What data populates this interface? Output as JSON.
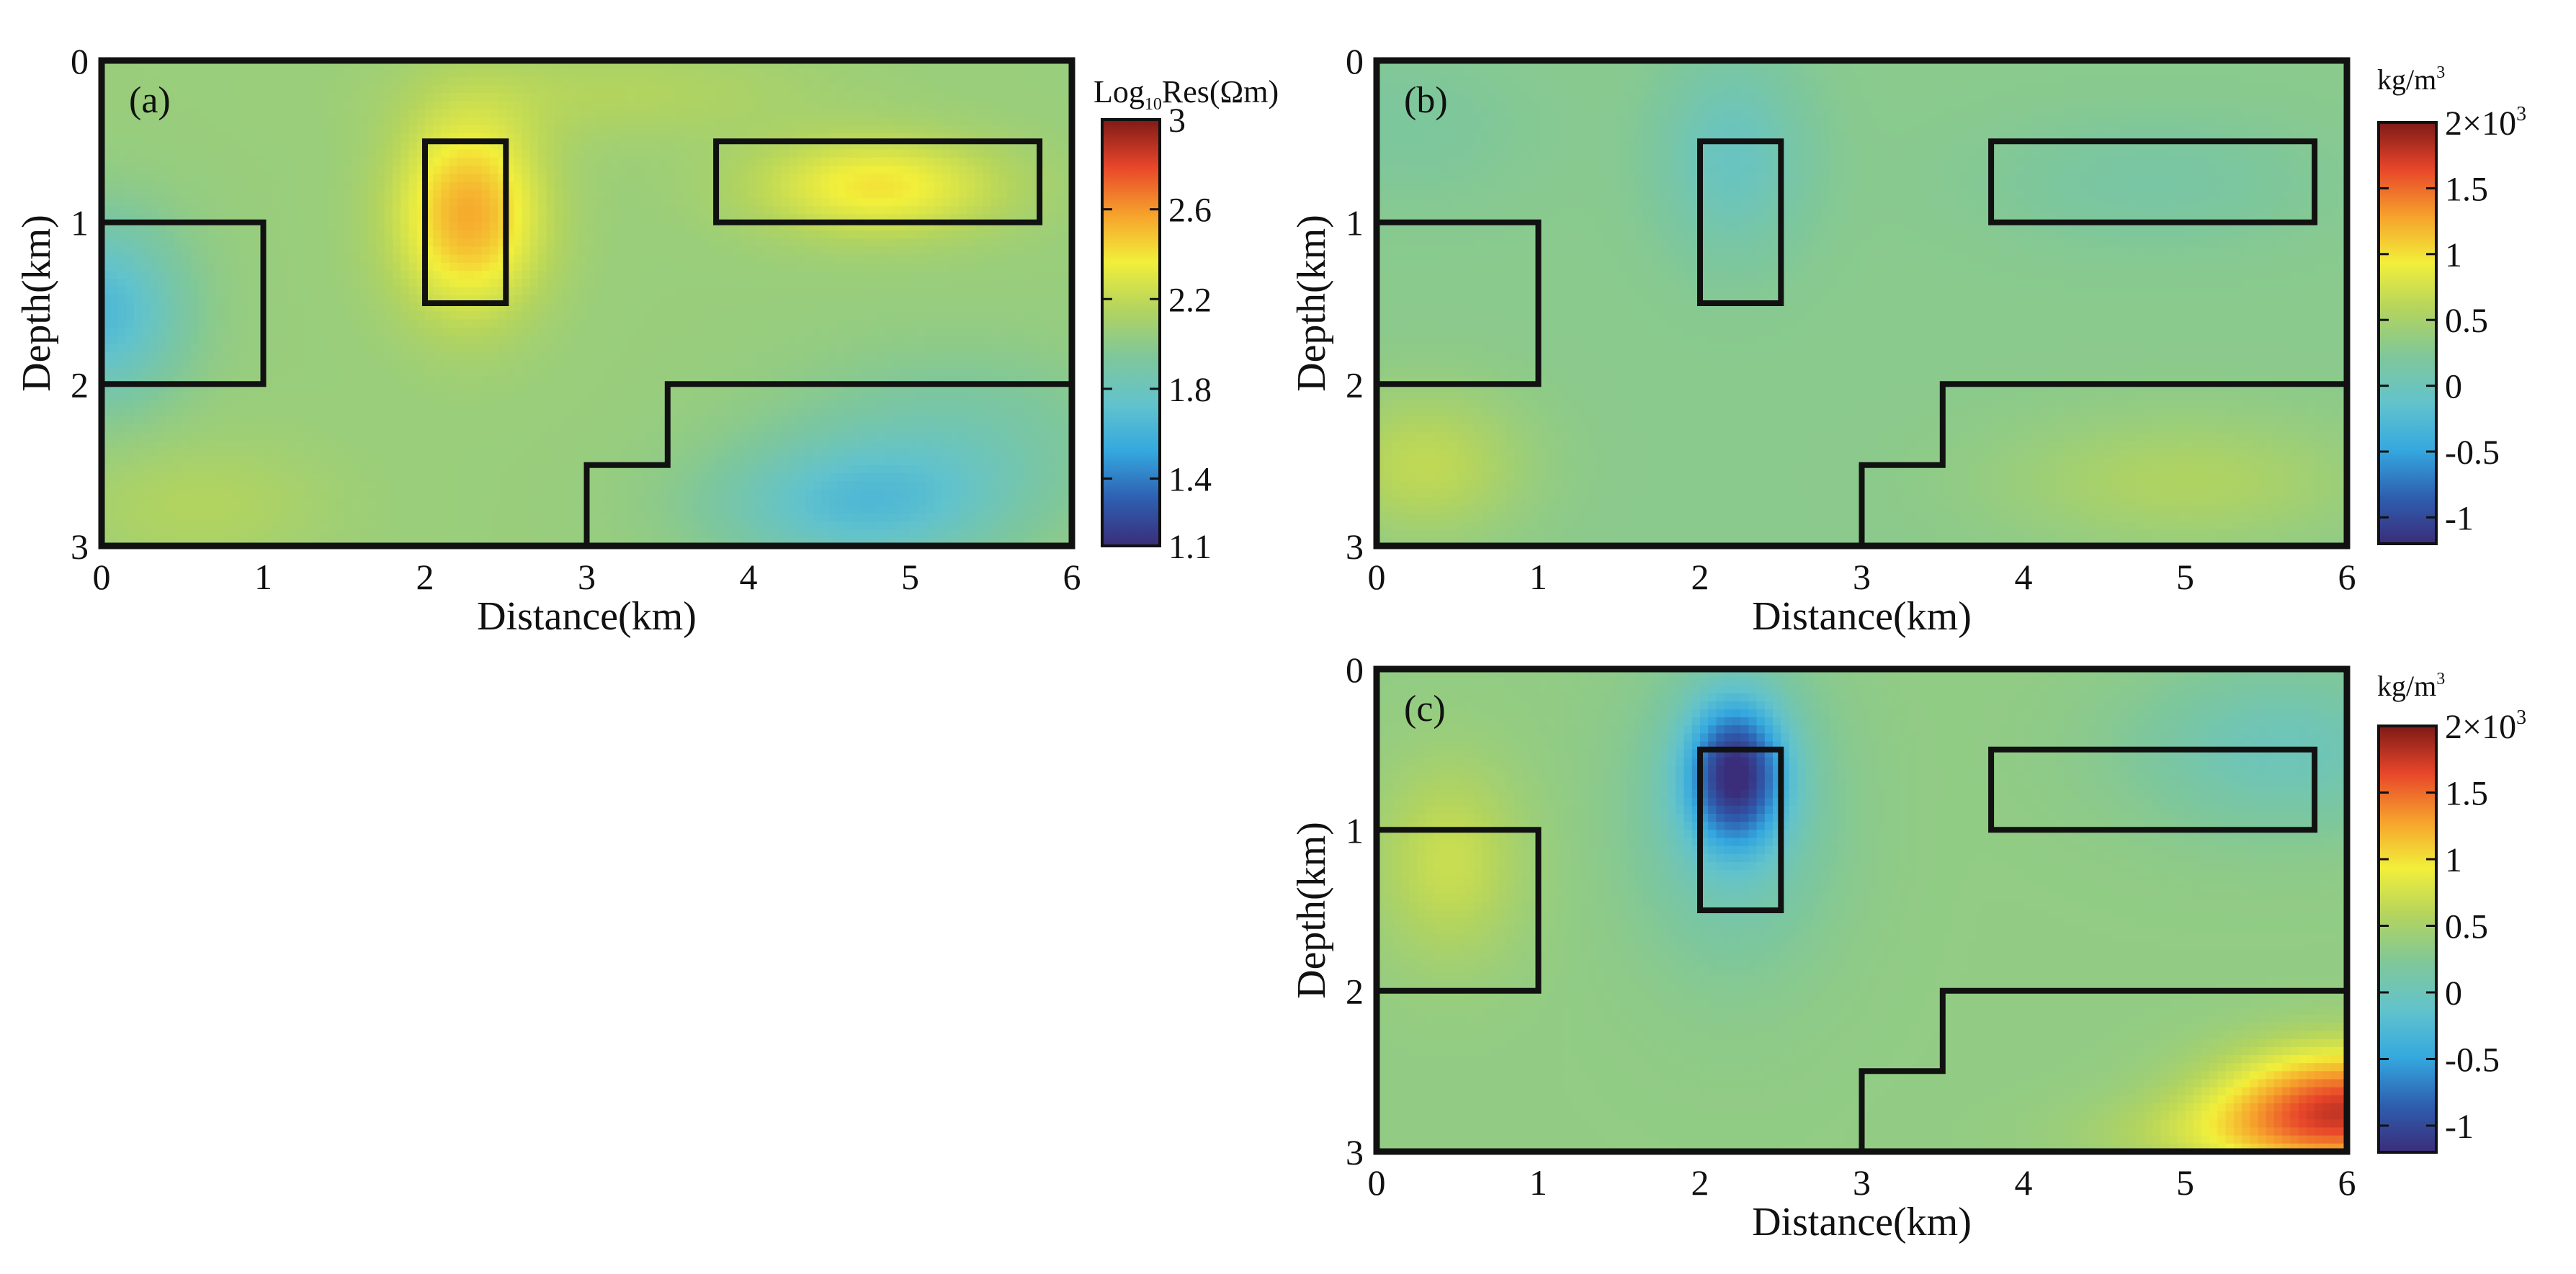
{
  "colors": {
    "outline": "#111111",
    "colormap": [
      "#3a2d7a",
      "#2e5fb0",
      "#34a8df",
      "#62c3cc",
      "#7fc79a",
      "#b3d45e",
      "#f2ef3a",
      "#f6a12c",
      "#e8462a",
      "#7e1a17"
    ]
  },
  "chart_data": [
    {
      "type": "heatmap",
      "panel_label": "(a)",
      "xlabel": "Distance(km)",
      "ylabel": "Depth(km)",
      "xlim": [
        0,
        6
      ],
      "ylim": [
        3,
        0
      ],
      "x_ticks": [
        "0",
        "1",
        "2",
        "3",
        "4",
        "5",
        "6"
      ],
      "y_ticks": [
        "0",
        "1",
        "2",
        "3"
      ],
      "colorbar": {
        "label_main": "Log",
        "label_sub": "10",
        "label_rest": "Res(Ωm)",
        "range": [
          1.1,
          3.0
        ],
        "ticks": [
          {
            "value": 3.0,
            "label": "3"
          },
          {
            "value": 2.6,
            "label": "2.6"
          },
          {
            "value": 2.2,
            "label": "2.2"
          },
          {
            "value": 1.8,
            "label": "1.8"
          },
          {
            "value": 1.4,
            "label": "1.4"
          },
          {
            "value": 1.1,
            "label": "1.1"
          }
        ]
      },
      "field": {
        "base": 2.05,
        "anomalies": [
          {
            "x": 2.27,
            "z": 0.95,
            "amp": 0.5,
            "sx": 0.45,
            "sz": 0.6
          },
          {
            "x": 4.8,
            "z": 0.78,
            "amp": 0.35,
            "sx": 0.75,
            "sz": 0.3
          },
          {
            "x": 0.0,
            "z": 1.55,
            "amp": -0.4,
            "sx": 0.5,
            "sz": 0.55
          },
          {
            "x": 4.7,
            "z": 2.75,
            "amp": -0.35,
            "sx": 0.9,
            "sz": 0.4
          },
          {
            "x": 5.3,
            "z": 2.3,
            "amp": -0.15,
            "sx": 1.0,
            "sz": 0.5
          },
          {
            "x": 0.6,
            "z": 2.75,
            "amp": 0.1,
            "sx": 0.8,
            "sz": 0.4
          },
          {
            "x": 3.2,
            "z": 0.2,
            "amp": 0.1,
            "sx": 1.2,
            "sz": 0.3
          }
        ]
      }
    },
    {
      "type": "heatmap",
      "panel_label": "(b)",
      "xlabel": "Distance(km)",
      "ylabel": "Depth(km)",
      "xlim": [
        0,
        6
      ],
      "ylim": [
        3,
        0
      ],
      "x_ticks": [
        "0",
        "1",
        "2",
        "3",
        "4",
        "5",
        "6"
      ],
      "y_ticks": [
        "0",
        "1",
        "2",
        "3"
      ],
      "colorbar": {
        "label_main": "kg/m",
        "label_sup": "3",
        "range": [
          -1.2,
          2.0
        ],
        "ticks": [
          {
            "value": 2.0,
            "label": "2×10",
            "sup": "3"
          },
          {
            "value": 1.5,
            "label": "1.5"
          },
          {
            "value": 1.0,
            "label": "1"
          },
          {
            "value": 0.5,
            "label": "0.5"
          },
          {
            "value": 0.0,
            "label": "0"
          },
          {
            "value": -0.5,
            "label": "-0.5"
          },
          {
            "value": -1.0,
            "label": "-1"
          }
        ]
      },
      "field": {
        "base": 0.3,
        "anomalies": [
          {
            "x": 2.2,
            "z": 0.6,
            "amp": -0.35,
            "sx": 0.45,
            "sz": 0.6
          },
          {
            "x": 4.8,
            "z": 0.75,
            "amp": -0.15,
            "sx": 1.0,
            "sz": 0.4
          },
          {
            "x": 0.3,
            "z": 2.5,
            "amp": 0.35,
            "sx": 0.6,
            "sz": 0.45
          },
          {
            "x": 5.0,
            "z": 2.6,
            "amp": 0.25,
            "sx": 1.1,
            "sz": 0.4
          },
          {
            "x": 0.2,
            "z": 0.4,
            "amp": -0.1,
            "sx": 0.8,
            "sz": 0.5
          }
        ]
      }
    },
    {
      "type": "heatmap",
      "panel_label": "(c)",
      "xlabel": "Distance(km)",
      "ylabel": "Depth(km)",
      "xlim": [
        0,
        6
      ],
      "ylim": [
        3,
        0
      ],
      "x_ticks": [
        "0",
        "1",
        "2",
        "3",
        "4",
        "5",
        "6"
      ],
      "y_ticks": [
        "0",
        "1",
        "2",
        "3"
      ],
      "colorbar": {
        "label_main": "kg/m",
        "label_sup": "3",
        "range": [
          -1.2,
          2.0
        ],
        "ticks": [
          {
            "value": 2.0,
            "label": "2×10",
            "sup": "3"
          },
          {
            "value": 1.5,
            "label": "1.5"
          },
          {
            "value": 1.0,
            "label": "1"
          },
          {
            "value": 0.5,
            "label": "0.5"
          },
          {
            "value": 0.0,
            "label": "0"
          },
          {
            "value": -0.5,
            "label": "-0.5"
          },
          {
            "value": -1.0,
            "label": "-1"
          }
        ]
      },
      "field": {
        "base": 0.35,
        "anomalies": [
          {
            "x": 2.22,
            "z": 0.65,
            "amp": -1.3,
            "sx": 0.3,
            "sz": 0.45
          },
          {
            "x": 2.2,
            "z": 0.9,
            "amp": -0.35,
            "sx": 0.6,
            "sz": 0.9
          },
          {
            "x": 5.6,
            "z": 0.5,
            "amp": -0.35,
            "sx": 0.9,
            "sz": 0.5
          },
          {
            "x": 0.45,
            "z": 1.2,
            "amp": 0.35,
            "sx": 0.45,
            "sz": 0.6
          },
          {
            "x": 6.0,
            "z": 2.7,
            "amp": 1.2,
            "sx": 0.75,
            "sz": 0.35
          },
          {
            "x": 5.6,
            "z": 2.9,
            "amp": 0.4,
            "sx": 1.0,
            "sz": 0.25
          }
        ]
      }
    }
  ],
  "model_outline": {
    "units": "km",
    "bodies": [
      {
        "name": "left-block",
        "points": [
          [
            0,
            1
          ],
          [
            1,
            1
          ],
          [
            1,
            2
          ],
          [
            0,
            2
          ]
        ]
      },
      {
        "name": "narrow-block",
        "points": [
          [
            2,
            0.5
          ],
          [
            2.5,
            0.5
          ],
          [
            2.5,
            1.5
          ],
          [
            2,
            1.5
          ]
        ]
      },
      {
        "name": "wide-block",
        "points": [
          [
            3.8,
            0.5
          ],
          [
            5.8,
            0.5
          ],
          [
            5.8,
            1
          ],
          [
            3.8,
            1
          ]
        ]
      },
      {
        "name": "step-body",
        "points": [
          [
            3,
            3
          ],
          [
            3,
            2.5
          ],
          [
            3.5,
            2.5
          ],
          [
            3.5,
            2
          ],
          [
            6,
            2
          ]
        ]
      }
    ]
  }
}
